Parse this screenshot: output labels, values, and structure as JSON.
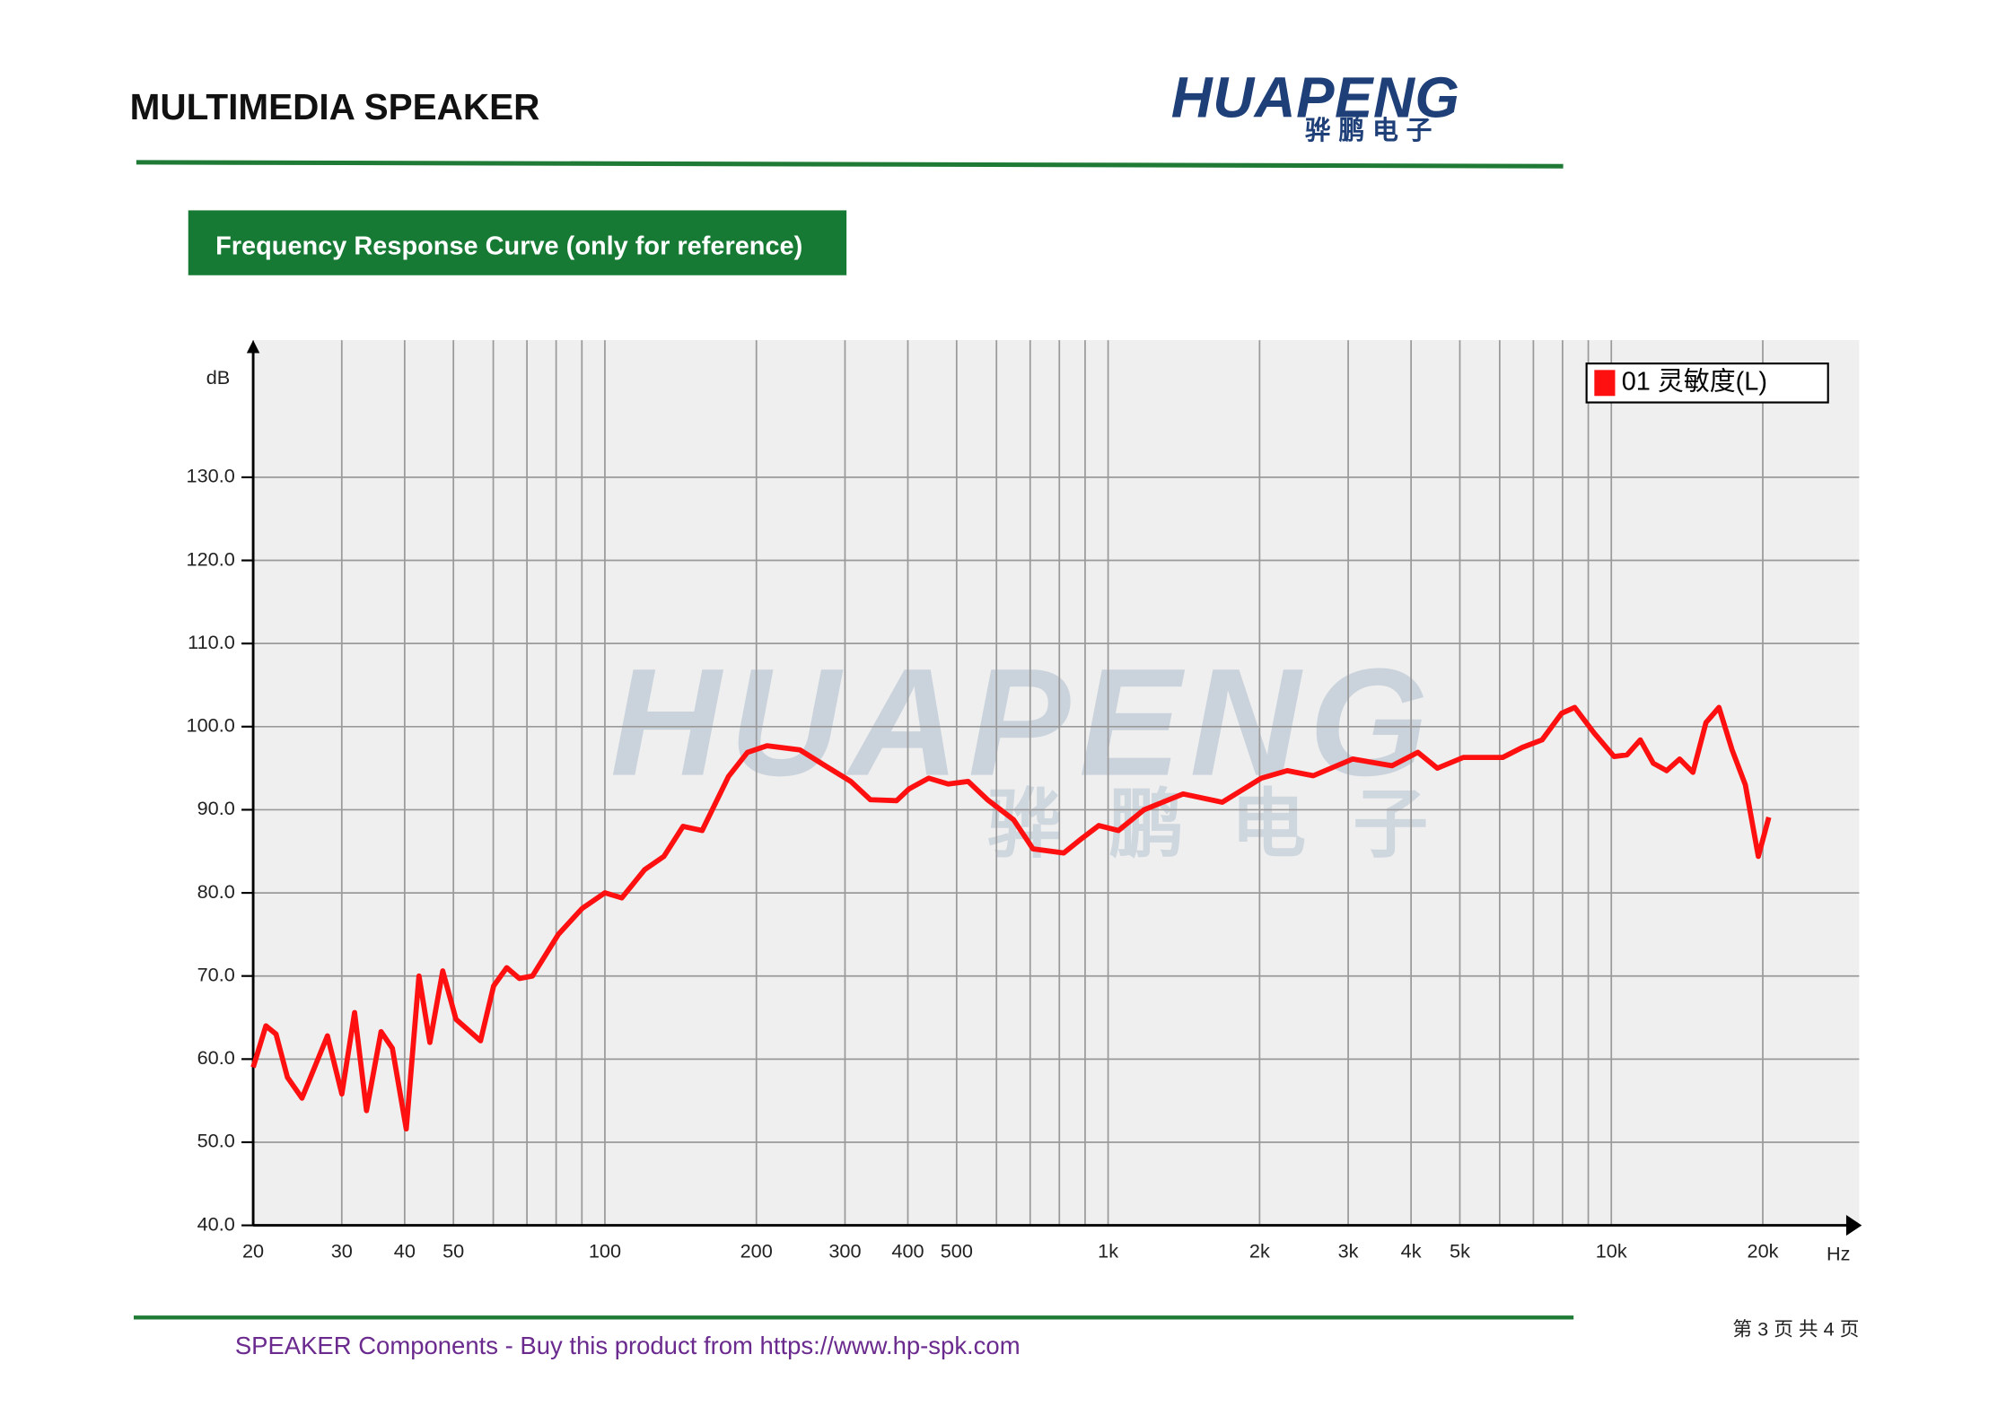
{
  "header": {
    "title": "MULTIMEDIA SPEAKER",
    "logo": "HUAPENG",
    "logo_cn": "骅鹏电子"
  },
  "section_title": "Frequency Response Curve (only for reference)",
  "chart_data": {
    "type": "line",
    "y_label": "dB",
    "x_label": "Hz",
    "x": [
      20,
      21.2,
      22.2,
      23.4,
      25,
      28.1,
      30,
      31.8,
      33.6,
      35.9,
      37.8,
      40.3,
      42.7,
      44.9,
      47.6,
      50.6,
      56.6,
      60.1,
      63.8,
      67.6,
      71.8,
      80.8,
      90,
      100,
      108,
      120,
      131,
      143,
      156,
      176,
      192,
      210,
      244,
      274,
      308,
      337,
      380,
      402,
      440,
      481,
      527,
      576,
      649,
      709,
      816,
      876,
      958,
      1048,
      1179,
      1410,
      1686,
      2016,
      2270,
      2557,
      3062,
      3664,
      4127,
      4512,
      5082,
      6083,
      6655,
      7282,
      7965,
      8460,
      9254,
      10125,
      10750,
      11420,
      12120,
      12880,
      13670,
      14520,
      15420,
      16370,
      17380,
      18460,
      19600,
      20560
    ],
    "series": [
      {
        "name": "01 灵敏度(L)",
        "color": "#ff1010",
        "values": [
          59,
          64,
          63,
          57.8,
          55.3,
          62.8,
          55.8,
          65.6,
          53.8,
          63.3,
          61.3,
          51.6,
          70,
          62,
          70.6,
          64.8,
          62.2,
          68.8,
          71,
          69.7,
          70,
          75,
          78.1,
          80,
          79.4,
          82.8,
          84.4,
          88,
          87.5,
          94,
          96.9,
          97.7,
          97.2,
          95.3,
          93.4,
          91.2,
          91.1,
          92.5,
          93.8,
          93.1,
          93.4,
          91.2,
          88.8,
          85.3,
          84.8,
          86.3,
          88.1,
          87.5,
          90,
          91.9,
          90.9,
          93.8,
          94.7,
          94.1,
          96.1,
          95.3,
          96.9,
          95,
          96.3,
          96.3,
          97.5,
          98.4,
          101.6,
          102.3,
          99.2,
          96.4,
          96.6,
          98.4,
          95.6,
          94.7,
          96.1,
          94.5,
          100.5,
          102.3,
          97.2,
          93,
          84.4,
          89.1
        ]
      }
    ],
    "xscale": "log",
    "xlim": [
      20,
      30000
    ],
    "xticks": [
      20,
      30,
      40,
      50,
      100,
      200,
      300,
      400,
      500,
      {
        "value": 1000,
        "label": "1k"
      },
      {
        "value": 2000,
        "label": "2k"
      },
      {
        "value": 3000,
        "label": "3k"
      },
      {
        "value": 4000,
        "label": "4k"
      },
      {
        "value": 5000,
        "label": "5k"
      },
      {
        "value": 10000,
        "label": "10k"
      },
      {
        "value": 20000,
        "label": "20k"
      }
    ],
    "xminor_ticks": [
      60,
      70,
      80,
      90,
      600,
      700,
      800,
      900,
      6000,
      7000,
      8000,
      9000
    ],
    "ylim": [
      40,
      146.5
    ],
    "yticks": [
      {
        "value": 40,
        "label": "40.0"
      },
      {
        "value": 50,
        "label": "50.0"
      },
      {
        "value": 60,
        "label": "60.0"
      },
      {
        "value": 70,
        "label": "70.0"
      },
      {
        "value": 80,
        "label": "80.0"
      },
      {
        "value": 90,
        "label": "90.0"
      },
      {
        "value": 100,
        "label": "100.0"
      },
      {
        "value": 110,
        "label": "110.0"
      },
      {
        "value": 120,
        "label": "120.0"
      },
      {
        "value": 130,
        "label": "130.0"
      }
    ],
    "grid": true,
    "legend": "upper right"
  },
  "footer": {
    "text": "SPEAKER Components - Buy this product from  https://www.hp-spk.com",
    "page": "第 3 页 共 4 页"
  }
}
